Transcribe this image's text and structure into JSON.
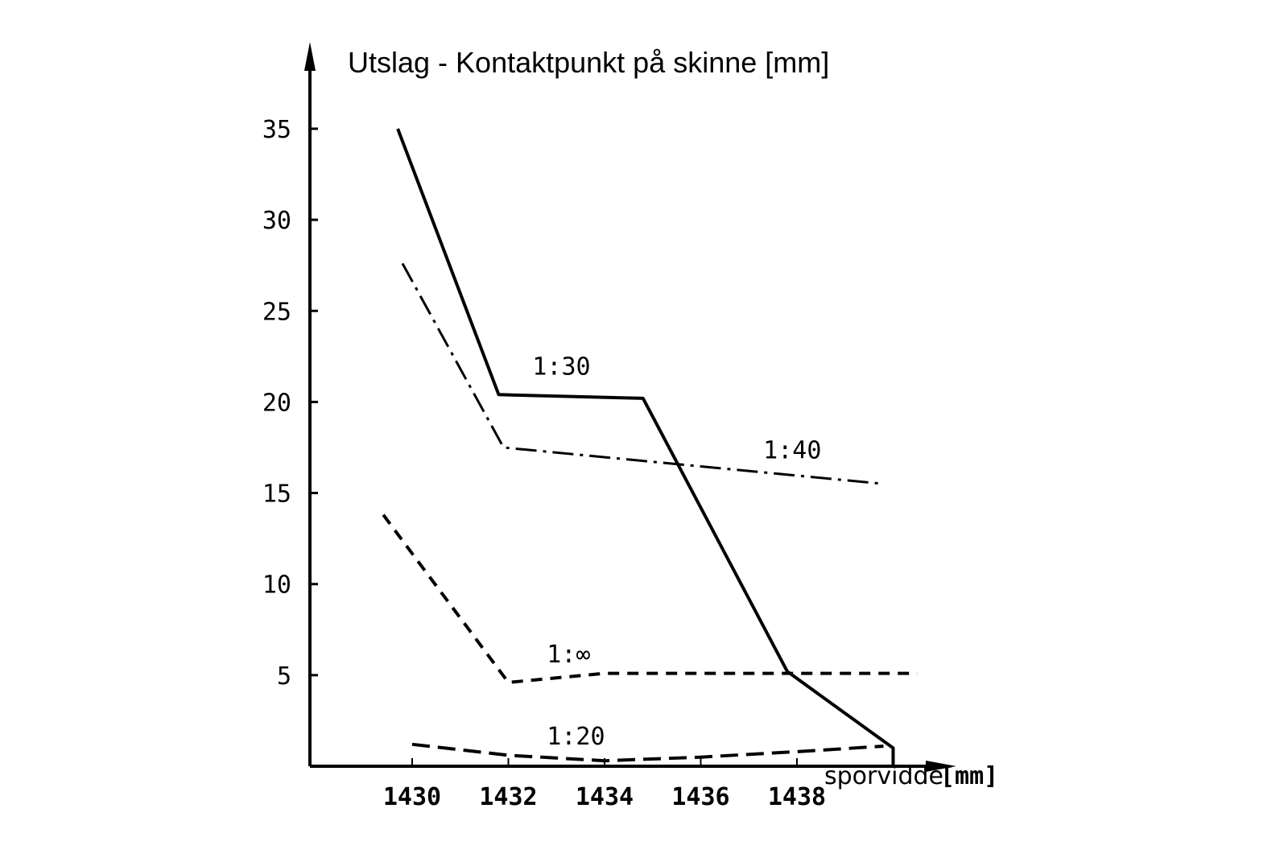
{
  "chart_data": {
    "type": "line",
    "title": "Utslag - Kontaktpunkt på skinne [mm]",
    "xlabel": "sporvidde",
    "xlabel_unit": "[mm]",
    "ylabel": "Utslag - Kontaktpunkt på skinne [mm]",
    "xlim": [
      1427.8,
      1441.5
    ],
    "ylim": [
      0,
      36
    ],
    "x_ticks": [
      1430,
      1432,
      1434,
      1436,
      1438
    ],
    "y_ticks": [
      5,
      10,
      15,
      20,
      25,
      30,
      35
    ],
    "grid": false,
    "legend": "inline labels",
    "series": [
      {
        "name": "1:30",
        "style": "solid",
        "x": [
          1429.7,
          1431.8,
          1434.8,
          1437.8,
          1440.0,
          1440.0
        ],
        "y": [
          35.0,
          20.4,
          20.2,
          5.2,
          1.0,
          0.0
        ],
        "label_pos": {
          "x": 1432.5,
          "y": 21.5
        }
      },
      {
        "name": "1:40",
        "style": "dashdot",
        "x": [
          1429.8,
          1431.9,
          1439.8
        ],
        "y": [
          27.6,
          17.5,
          15.5
        ],
        "label_pos": {
          "x": 1437.3,
          "y": 16.9
        }
      },
      {
        "name": "1:∞",
        "style": "dashed",
        "x": [
          1429.4,
          1432.0,
          1434.0,
          1440.5
        ],
        "y": [
          13.8,
          4.6,
          5.1,
          5.1
        ],
        "label_pos": {
          "x": 1432.8,
          "y": 5.7
        }
      },
      {
        "name": "1:20",
        "style": "longdash",
        "x": [
          1430.0,
          1432.0,
          1434.0,
          1436.0,
          1438.0,
          1439.8
        ],
        "y": [
          1.2,
          0.6,
          0.3,
          0.5,
          0.8,
          1.1
        ],
        "label_pos": {
          "x": 1432.8,
          "y": 1.2
        }
      }
    ]
  }
}
